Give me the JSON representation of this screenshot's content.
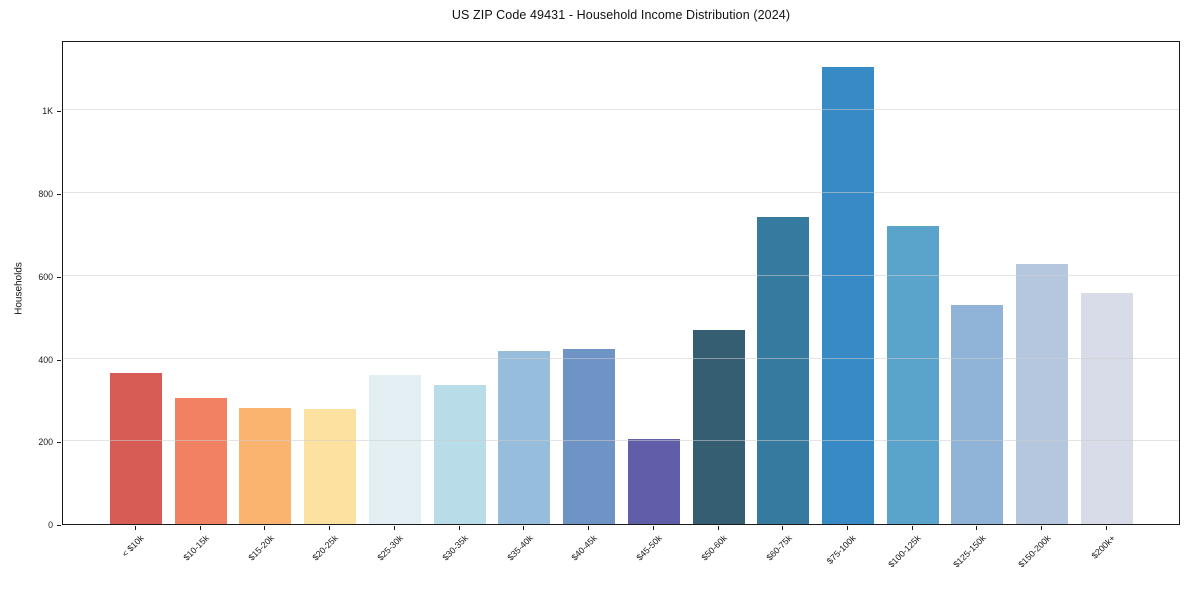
{
  "title": "US ZIP Code 49431 - Household Income Distribution (2024)",
  "chart_data": {
    "type": "bar",
    "title": "US ZIP Code 49431 - Household Income Distribution (2024)",
    "xlabel": "",
    "ylabel": "Households",
    "categories": [
      "< $10k",
      "$10-15k",
      "$15-20k",
      "$20-25k",
      "$25-30k",
      "$30-35k",
      "$35-40k",
      "$40-45k",
      "$45-50k",
      "$50-60k",
      "$60-75k",
      "$75-100k",
      "$100-125k",
      "$125-150k",
      "$150-200k",
      "$200k+"
    ],
    "values": [
      365,
      304,
      281,
      278,
      361,
      335,
      419,
      424,
      205,
      470,
      741,
      1105,
      720,
      529,
      629,
      559
    ],
    "bar_colors": [
      "#d65c55",
      "#f08263",
      "#fab470",
      "#fce1a0",
      "#e3eff3",
      "#b8dce8",
      "#96bddc",
      "#6d94c4",
      "#615ea9",
      "#355e73",
      "#377aa0",
      "#378ac5",
      "#5aa3cb",
      "#8fb4d8",
      "#b5c7de",
      "#d8dbe8"
    ],
    "yticks": {
      "values": [
        0,
        200,
        400,
        600,
        800,
        1000
      ],
      "labels": [
        "0",
        "200",
        "400",
        "600",
        "800",
        "1K"
      ]
    },
    "ylim": [
      0,
      1170
    ],
    "grid": "horizontal",
    "legend": "none",
    "background_color": "#ffffff",
    "spine_color": "#1a1a1a",
    "grid_color": "#cdcdcd"
  }
}
